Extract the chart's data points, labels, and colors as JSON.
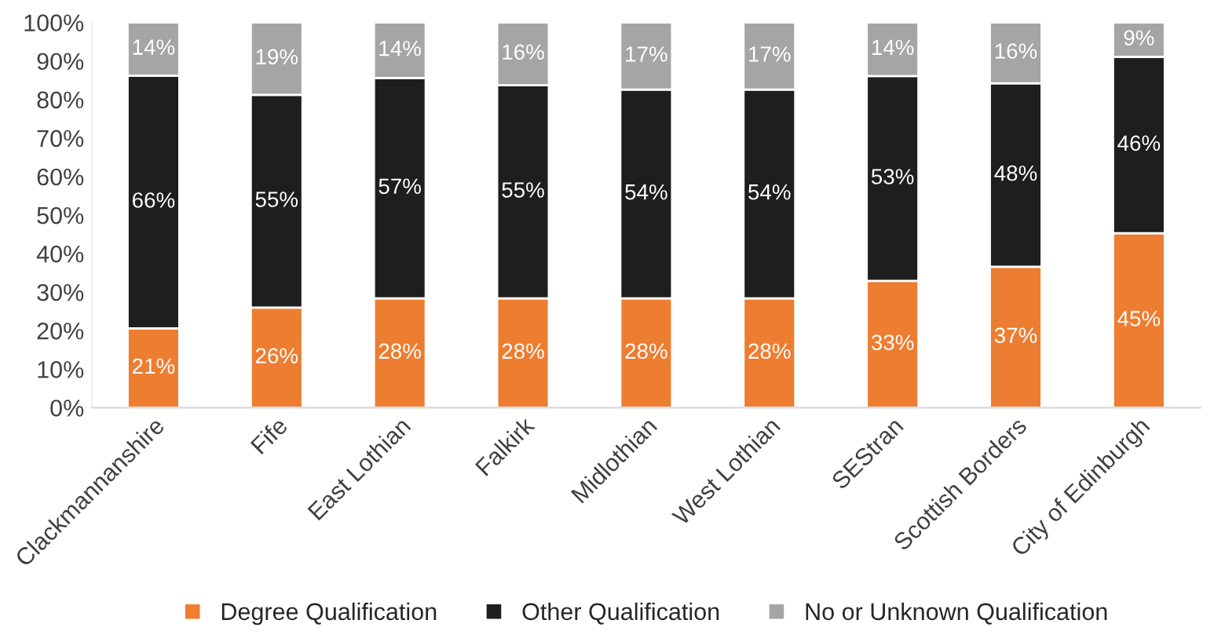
{
  "chart_data": {
    "type": "bar",
    "stacked": true,
    "categories": [
      "Clackmannanshire",
      "Fife",
      "East Lothian",
      "Falkirk",
      "Midlothian",
      "West Lothian",
      "SEStran",
      "Scottish Borders",
      "City of Edinburgh"
    ],
    "series": [
      {
        "name": "Degree Qualification",
        "color": "#ed7d31",
        "values": [
          20.6,
          26.0,
          28.4,
          28.4,
          28.4,
          28.4,
          32.9,
          36.6,
          45.3
        ],
        "value_labels": [
          "21%",
          "26%",
          "28%",
          "28%",
          "28%",
          "28%",
          "33%",
          "37%",
          "45%"
        ]
      },
      {
        "name": "Other Qualification",
        "color": "#1e1e1e",
        "values": [
          65.6,
          55.2,
          57.2,
          55.3,
          54.2,
          54.2,
          53.2,
          47.6,
          45.8
        ],
        "value_labels": [
          "66%",
          "55%",
          "57%",
          "55%",
          "54%",
          "54%",
          "53%",
          "48%",
          "46%"
        ]
      },
      {
        "name": "No or Unknown Qualification",
        "color": "#a5a5a5",
        "values": [
          13.8,
          18.8,
          14.4,
          16.3,
          17.4,
          17.4,
          13.9,
          15.8,
          8.9
        ],
        "value_labels": [
          "14%",
          "19%",
          "14%",
          "16%",
          "17%",
          "17%",
          "14%",
          "16%",
          "9%"
        ]
      }
    ],
    "ylim": [
      0,
      100
    ],
    "yticks": [
      {
        "value": 0,
        "label": "0%"
      },
      {
        "value": 10,
        "label": "10%"
      },
      {
        "value": 20,
        "label": "20%"
      },
      {
        "value": 30,
        "label": "30%"
      },
      {
        "value": 40,
        "label": "40%"
      },
      {
        "value": 50,
        "label": "50%"
      },
      {
        "value": 60,
        "label": "60%"
      },
      {
        "value": 70,
        "label": "70%"
      },
      {
        "value": 80,
        "label": "80%"
      },
      {
        "value": 90,
        "label": "90%"
      },
      {
        "value": 100,
        "label": "100%"
      }
    ],
    "legend": "bottom"
  }
}
